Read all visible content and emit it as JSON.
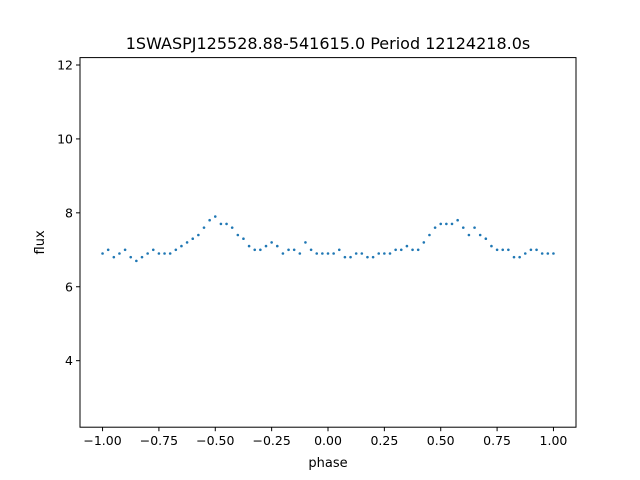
{
  "chart_data": {
    "type": "scatter",
    "title": "1SWASPJ125528.88-541615.0 Period 12124218.0s",
    "xlabel": "phase",
    "ylabel": "flux",
    "xlim": [
      -1.1,
      1.1
    ],
    "ylim": [
      2.2,
      12.2
    ],
    "xticks": [
      {
        "value": -1.0,
        "label": "−1.00"
      },
      {
        "value": -0.75,
        "label": "−0.75"
      },
      {
        "value": -0.5,
        "label": "−0.50"
      },
      {
        "value": -0.25,
        "label": "−0.25"
      },
      {
        "value": 0.0,
        "label": "0.00"
      },
      {
        "value": 0.25,
        "label": "0.25"
      },
      {
        "value": 0.5,
        "label": "0.50"
      },
      {
        "value": 0.75,
        "label": "0.75"
      },
      {
        "value": 1.0,
        "label": "1.00"
      }
    ],
    "yticks": [
      {
        "value": 4,
        "label": "4"
      },
      {
        "value": 6,
        "label": "6"
      },
      {
        "value": 8,
        "label": "8"
      },
      {
        "value": 10,
        "label": "10"
      },
      {
        "value": 12,
        "label": "12"
      }
    ],
    "grid": false,
    "marker_color": "#1f77b4",
    "series": [
      {
        "x": [
          -1.0,
          -0.975,
          -0.95,
          -0.925,
          -0.9,
          -0.875,
          -0.85,
          -0.825,
          -0.8,
          -0.775,
          -0.75,
          -0.725,
          -0.7,
          -0.675,
          -0.65,
          -0.625,
          -0.6,
          -0.575,
          -0.55,
          -0.525,
          -0.5,
          -0.475,
          -0.45,
          -0.425,
          -0.4,
          -0.375,
          -0.35,
          -0.325,
          -0.3,
          -0.275,
          -0.25,
          -0.225,
          -0.2,
          -0.175,
          -0.15,
          -0.125,
          -0.1,
          -0.075,
          -0.05,
          -0.025,
          0.0,
          0.025,
          0.05,
          0.075,
          0.1,
          0.125,
          0.15,
          0.175,
          0.2,
          0.225,
          0.25,
          0.275,
          0.3,
          0.325,
          0.35,
          0.375,
          0.4,
          0.425,
          0.45,
          0.475,
          0.5,
          0.525,
          0.55,
          0.575,
          0.6,
          0.625,
          0.65,
          0.675,
          0.7,
          0.725,
          0.75,
          0.775,
          0.8,
          0.825,
          0.85,
          0.875,
          0.9,
          0.925,
          0.95,
          0.975,
          1.0
        ],
        "y": [
          6.9,
          7.0,
          6.8,
          6.9,
          7.0,
          6.8,
          6.7,
          6.8,
          6.9,
          7.0,
          6.9,
          6.9,
          6.9,
          7.0,
          7.1,
          7.2,
          7.3,
          7.4,
          7.6,
          7.8,
          7.9,
          7.7,
          7.7,
          7.6,
          7.4,
          7.3,
          7.1,
          7.0,
          7.0,
          7.1,
          7.2,
          7.1,
          6.9,
          7.0,
          7.0,
          6.9,
          7.2,
          7.0,
          6.9,
          6.9,
          6.9,
          6.9,
          7.0,
          6.8,
          6.8,
          6.9,
          6.9,
          6.8,
          6.8,
          6.9,
          6.9,
          6.9,
          7.0,
          7.0,
          7.1,
          7.0,
          7.0,
          7.2,
          7.4,
          7.6,
          7.7,
          7.7,
          7.7,
          7.8,
          7.6,
          7.4,
          7.6,
          7.4,
          7.3,
          7.1,
          7.0,
          7.0,
          7.0,
          6.8,
          6.8,
          6.9,
          7.0,
          7.0,
          6.9,
          6.9,
          6.9
        ]
      }
    ]
  }
}
